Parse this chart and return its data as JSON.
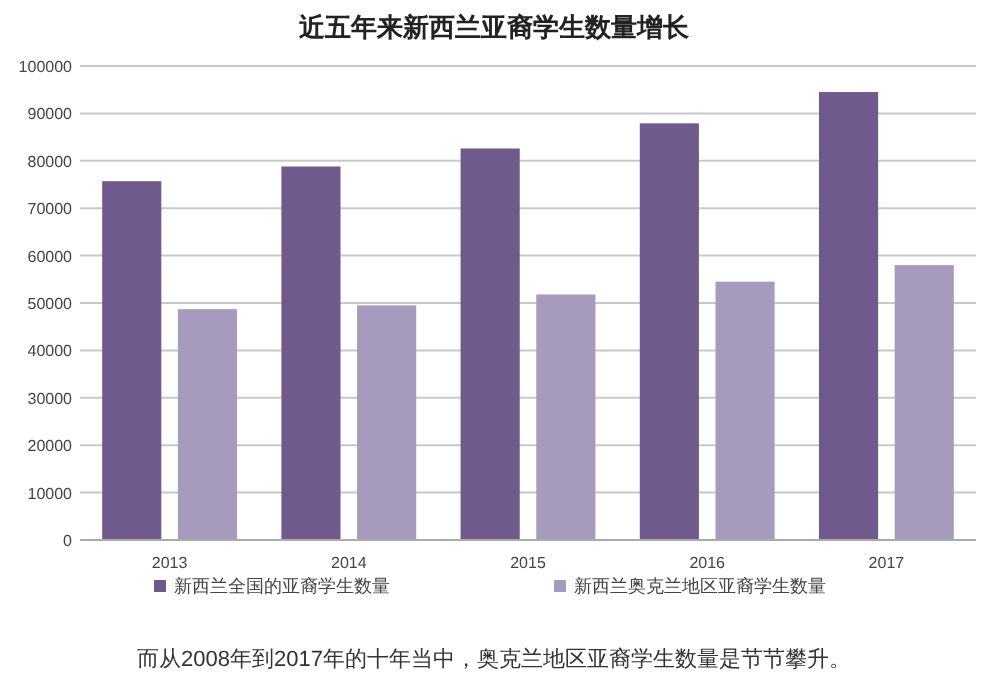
{
  "chart_data": {
    "type": "bar",
    "title": "近五年来新西兰亚裔学生数量增长",
    "categories": [
      "2013",
      "2014",
      "2015",
      "2016",
      "2017"
    ],
    "series": [
      {
        "name": "新西兰全国的亚裔学生数量",
        "color": "#6f5a8e",
        "values": [
          75700,
          78800,
          82600,
          87900,
          94500
        ]
      },
      {
        "name": "新西兰奥克兰地区亚裔学生数量",
        "color": "#a79bbd",
        "values": [
          48700,
          49500,
          51800,
          54500,
          58000
        ]
      }
    ],
    "ylim": [
      0,
      100000
    ],
    "yticks": [
      0,
      10000,
      20000,
      30000,
      40000,
      50000,
      60000,
      70000,
      80000,
      90000,
      100000
    ],
    "grid": "y",
    "legend": "bottom",
    "annotations": [
      "而从2008年到2017年的十年当中，奥克兰地区亚裔学生数量是节节攀升。"
    ]
  }
}
